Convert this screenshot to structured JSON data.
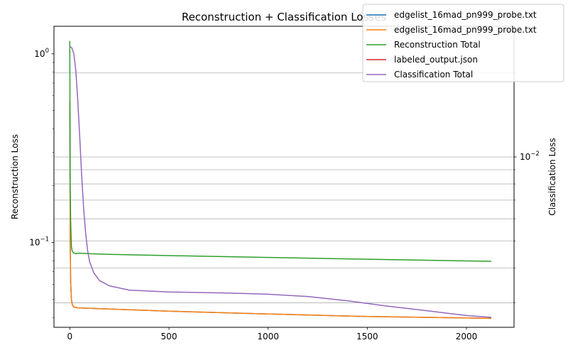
{
  "chart_data": {
    "type": "line",
    "title": "Reconstruction + Classification Losses",
    "xlabel": "",
    "ylabel": "Reconstruction Loss",
    "y2label": "Classification Loss",
    "xlim": [
      -80,
      2240
    ],
    "ylim": [
      0.0355,
      1.4
    ],
    "y2lim": [
      0.00245,
      0.0294
    ],
    "yscale": "log",
    "y2scale": "log",
    "x_ticks": [
      0,
      500,
      1000,
      1500,
      2000
    ],
    "y_ticks": [
      {
        "value": 1.0,
        "label": "10",
        "exp": "0"
      },
      {
        "value": 0.1,
        "label": "10",
        "exp": "−1"
      }
    ],
    "y2_ticks": [
      {
        "value": 0.01,
        "label": "10",
        "exp": "−2"
      }
    ],
    "grid": "y2-axis horizontal gridlines",
    "legend_position": "top-right",
    "series": [
      {
        "name": "edgelist_16mad_pn999_probe.txt",
        "axis": "left",
        "color": "#1f77b4",
        "x": [
          0,
          2,
          4,
          8,
          12,
          20,
          40,
          100,
          200,
          500,
          1000,
          1500,
          2000,
          2125
        ],
        "y": [
          0.56,
          0.1,
          0.062,
          0.05,
          0.047,
          0.0455,
          0.045,
          0.0448,
          0.0444,
          0.0432,
          0.0418,
          0.0405,
          0.0398,
          0.0396
        ]
      },
      {
        "name": "edgelist_16mad_pn999_probe.txt",
        "axis": "left",
        "color": "#ff7f0e",
        "x": [
          0,
          2,
          4,
          8,
          12,
          20,
          40,
          100,
          200,
          500,
          1000,
          1500,
          2000,
          2125
        ],
        "y": [
          0.56,
          0.1,
          0.062,
          0.05,
          0.047,
          0.0455,
          0.045,
          0.0448,
          0.0444,
          0.0432,
          0.0418,
          0.0405,
          0.0398,
          0.0396
        ]
      },
      {
        "name": "Reconstruction Total",
        "axis": "left",
        "color": "#2ca02c",
        "x": [
          0,
          2,
          4,
          8,
          12,
          20,
          30,
          40,
          50,
          60,
          100,
          200,
          500,
          1000,
          1500,
          2000,
          2125
        ],
        "y": [
          1.17,
          0.2,
          0.13,
          0.095,
          0.09,
          0.088,
          0.0873,
          0.0875,
          0.0878,
          0.0876,
          0.0872,
          0.0865,
          0.0852,
          0.0833,
          0.0815,
          0.0798,
          0.0795
        ]
      },
      {
        "name": "labeled_output.json",
        "axis": "right",
        "color": "#d62728",
        "x": [],
        "y": []
      },
      {
        "name": "Classification Total",
        "axis": "right",
        "color": "#9467bd",
        "x": [
          0,
          10,
          20,
          30,
          40,
          50,
          60,
          70,
          80,
          90,
          100,
          120,
          150,
          200,
          300,
          500,
          800,
          1000,
          1200,
          1400,
          1600,
          1800,
          2000,
          2125
        ],
        "y": [
          0.0249,
          0.0246,
          0.0235,
          0.0205,
          0.016,
          0.0118,
          0.0085,
          0.0065,
          0.0053,
          0.0046,
          0.0042,
          0.00385,
          0.0036,
          0.00345,
          0.00333,
          0.00328,
          0.00325,
          0.00322,
          0.00316,
          0.00305,
          0.00292,
          0.00281,
          0.0027,
          0.00266
        ]
      }
    ]
  }
}
